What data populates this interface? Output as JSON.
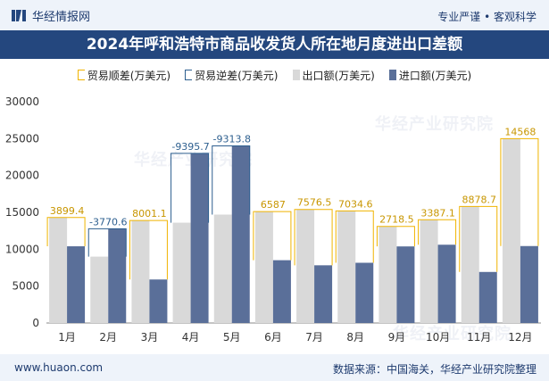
{
  "header": {
    "brand": "华经情报网",
    "slogan": "专业严谨 • 客观科学"
  },
  "chart_data": {
    "type": "bar",
    "title": "2024年呼和浩特市商品收发货人所在地月度进出口差额",
    "categories": [
      "1月",
      "2月",
      "3月",
      "4月",
      "5月",
      "6月",
      "7月",
      "8月",
      "9月",
      "10月",
      "11月",
      "12月"
    ],
    "ylim": [
      0,
      30000
    ],
    "yticks": [
      0,
      5000,
      10000,
      15000,
      20000,
      25000,
      30000
    ],
    "series": [
      {
        "name": "出口额(万美元)",
        "values": [
          14300,
          9000,
          13900,
          13600,
          14700,
          15100,
          15400,
          15200,
          13100,
          14000,
          15800,
          25000
        ]
      },
      {
        "name": "进口额(万美元)",
        "values": [
          10400,
          12770,
          5900,
          22995,
          24014,
          8513,
          7823,
          8165,
          10382,
          10613,
          6921,
          10432
        ]
      }
    ],
    "balance": {
      "values": [
        3899.4,
        -3770.6,
        8001.1,
        -9395.7,
        -9313.8,
        6587,
        7576.5,
        7034.6,
        2718.5,
        3387.1,
        8878.7,
        14568
      ],
      "labels": [
        "3899.4",
        "-3770.6",
        "8001.1",
        "-9395.7",
        "-9313.8",
        "6587",
        "7576.5",
        "7034.6",
        "2718.5",
        "3387.1",
        "8878.7",
        "14568"
      ]
    },
    "legend": [
      {
        "label": "贸易顺差(万美元)",
        "kind": "surplus"
      },
      {
        "label": "贸易逆差(万美元)",
        "kind": "deficit"
      },
      {
        "label": "出口额(万美元)",
        "kind": "export"
      },
      {
        "label": "进口额(万美元)",
        "kind": "import"
      }
    ],
    "colors": {
      "export": "#d9d9d9",
      "import": "#5a6f99",
      "surplus": "#f0b400",
      "deficit": "#2d5f8f",
      "surplus_text": "#c89600",
      "deficit_text": "#2d5f8f"
    },
    "legend_position": "top",
    "grid": false
  },
  "watermark": "华经产业研究院",
  "footer": {
    "site": "www.huaon.com",
    "source": "数据来源：中国海关，华经产业研究院整理"
  }
}
